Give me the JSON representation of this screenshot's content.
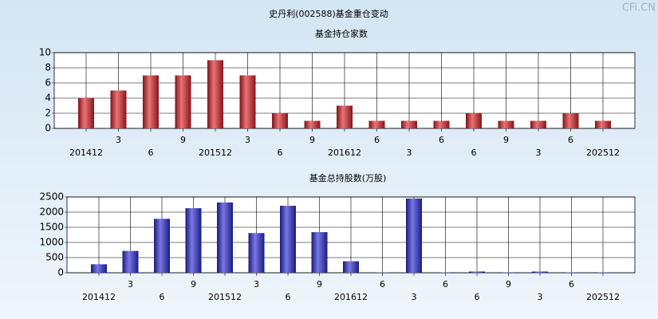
{
  "title": "史丹利(002588)基金重仓变动",
  "watermark": "CFi.CN",
  "chart_data": [
    {
      "type": "bar",
      "title": "基金持仓家数",
      "color": "#e0262b",
      "categories": [
        "201412",
        "3",
        "6",
        "9",
        "201512",
        "3",
        "6",
        "9",
        "201612",
        "6",
        "3",
        "6",
        "6",
        "9",
        "3",
        "6",
        "202512"
      ],
      "values": [
        4,
        5,
        7,
        7,
        9,
        7,
        2,
        1,
        3,
        1,
        1,
        1,
        2,
        1,
        1,
        2,
        1
      ],
      "ylim": [
        0,
        10
      ],
      "yticks": [
        0,
        2,
        4,
        6,
        8,
        10
      ],
      "grid": true
    },
    {
      "type": "bar",
      "title": "基金总持股数(万股)",
      "color": "#2d2fd8",
      "categories": [
        "201412",
        "3",
        "6",
        "9",
        "201512",
        "3",
        "6",
        "9",
        "201612",
        "6",
        "3",
        "6",
        "6",
        "9",
        "3",
        "6",
        "202512"
      ],
      "values": [
        280,
        720,
        1780,
        2130,
        2320,
        1310,
        2210,
        1340,
        380,
        10,
        2450,
        15,
        40,
        15,
        40,
        15,
        15
      ],
      "ylim": [
        0,
        2500
      ],
      "yticks": [
        0,
        500,
        1000,
        1500,
        2000,
        2500
      ],
      "grid": true
    }
  ]
}
